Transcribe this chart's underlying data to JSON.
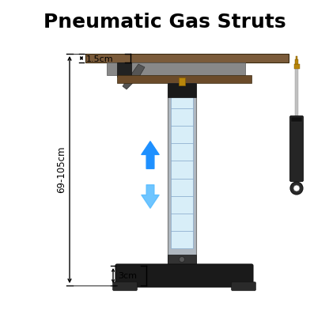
{
  "title": "Pneumatic Gas Struts",
  "title_fontsize": 18,
  "title_fontweight": "bold",
  "bg_color": "#ffffff",
  "desk_top_color": "#7B5B3A",
  "desk_frame_color": "#888888",
  "desk_frame2_color": "#6B4B2A",
  "column_outer_color": "#b0b8c0",
  "column_inner_color": "#d8eef8",
  "column_grid_color": "#88aacc",
  "base_color": "#1a1a1a",
  "strut_body_color": "#252525",
  "strut_rod_color": "#c0c0c0",
  "strut_tip_color": "#b8860b",
  "arrow_up_color": "#1e90ff",
  "arrow_down_color": "#55bbff",
  "dim_color": "#000000",
  "label_15cm": "1.5cm",
  "label_69105cm": "69-105cm",
  "label_3cm": "3cm"
}
